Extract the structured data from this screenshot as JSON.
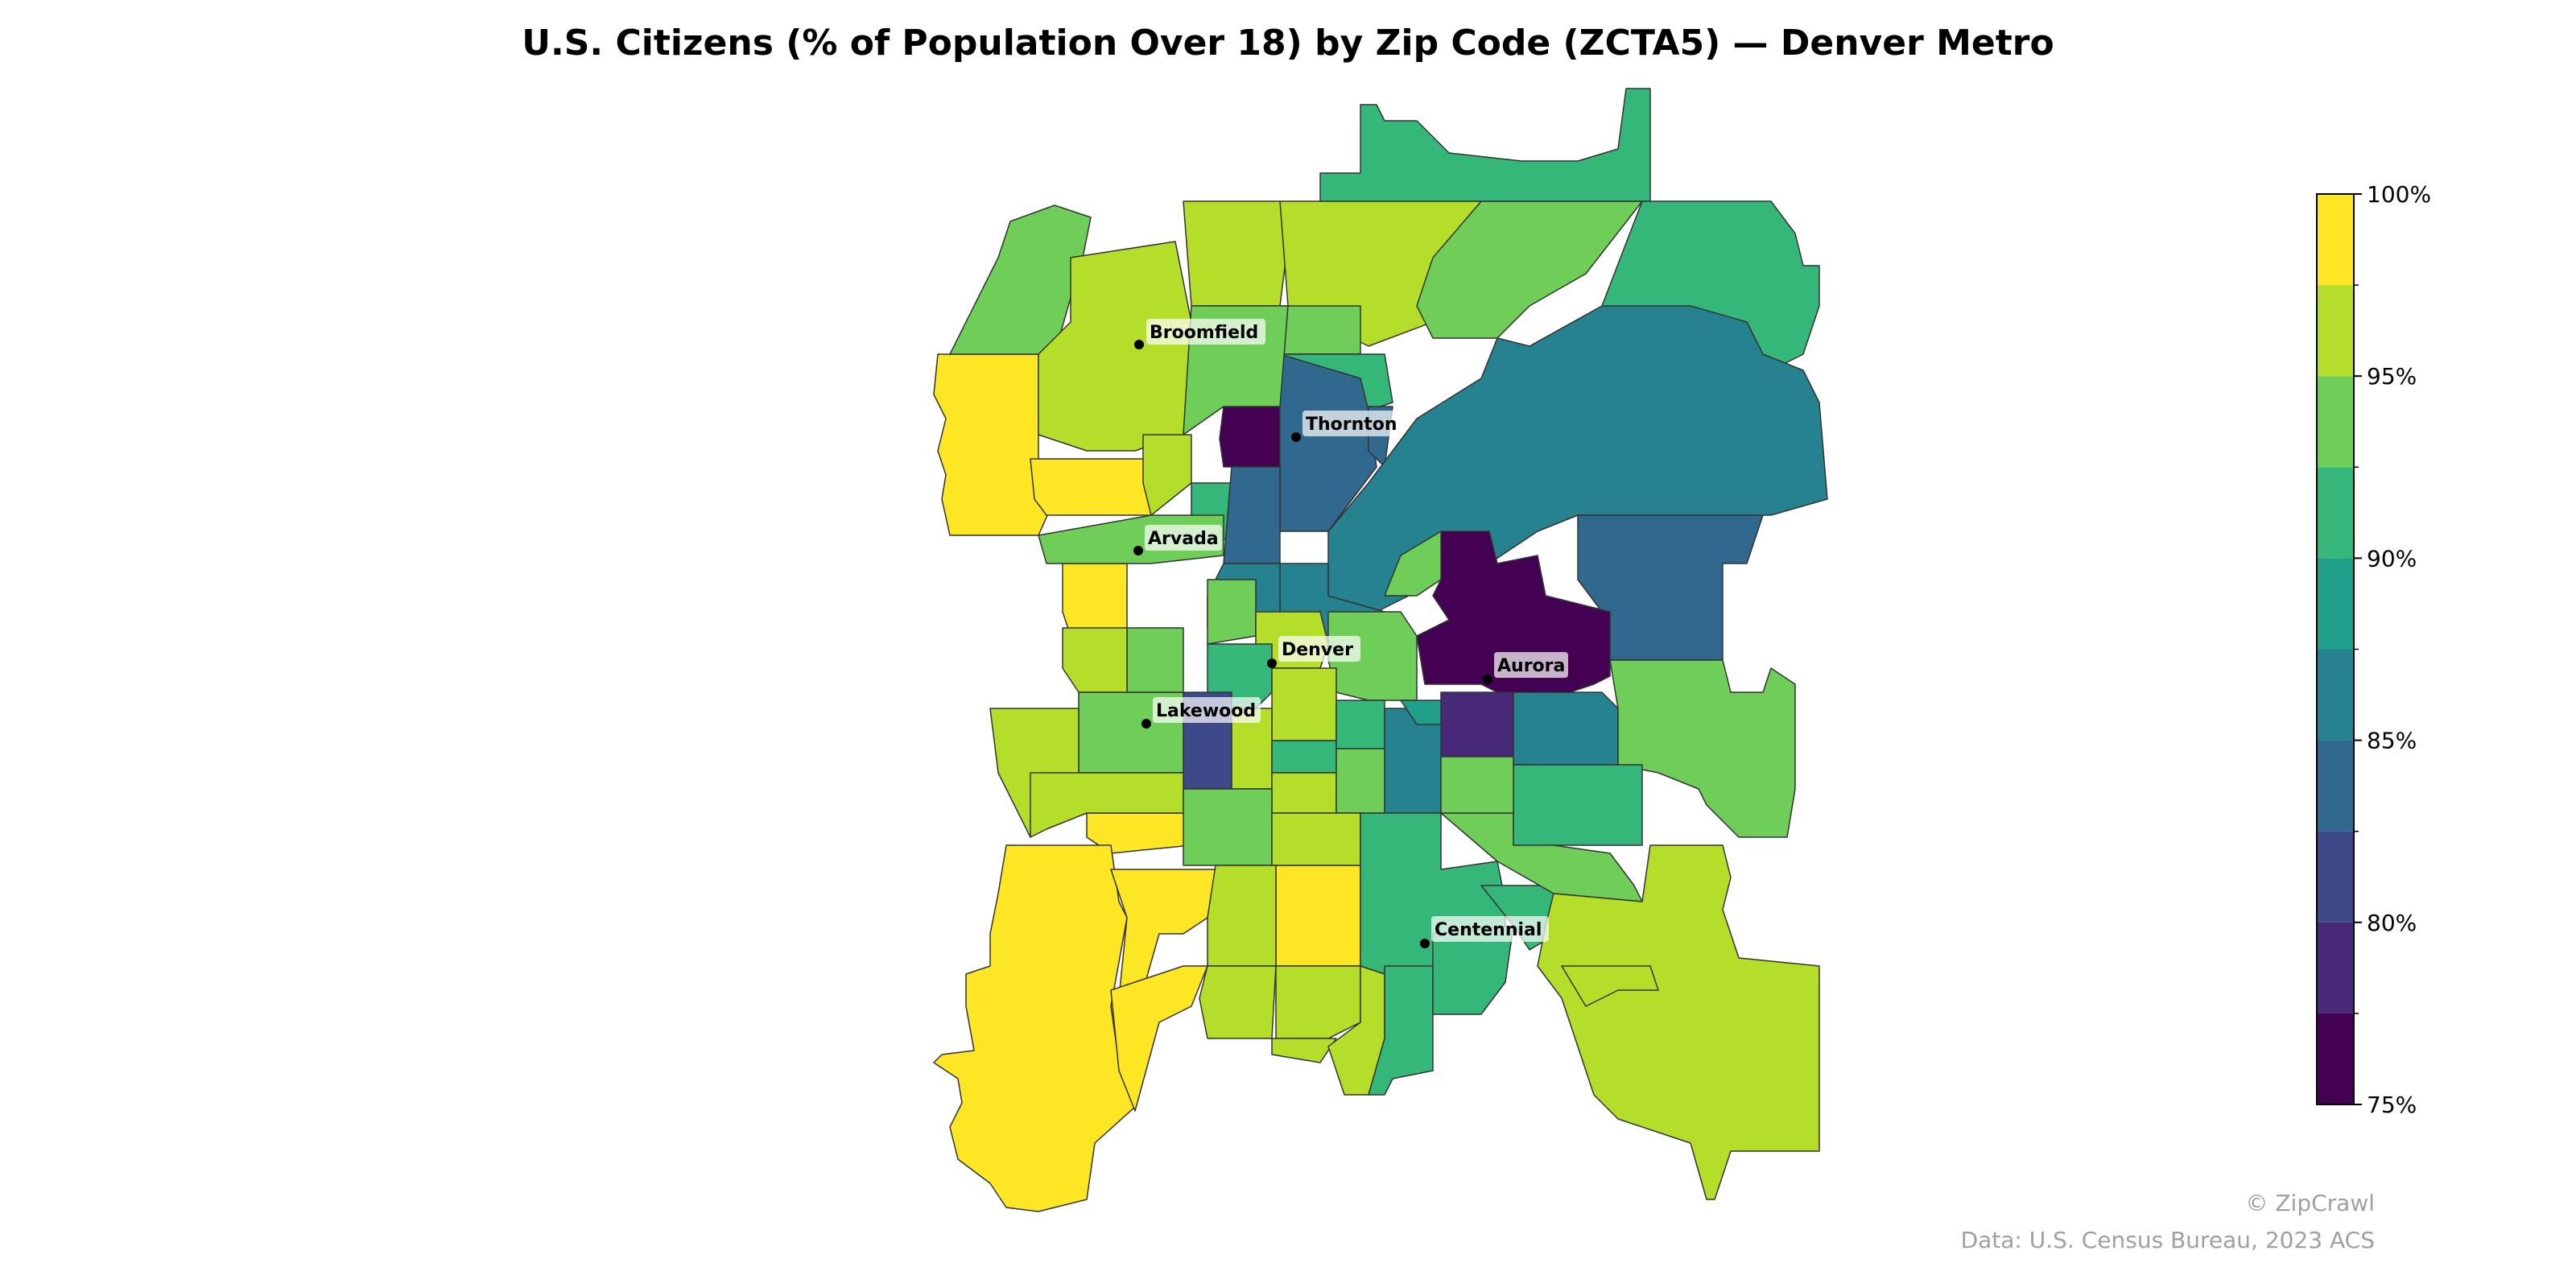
{
  "title": "U.S. Citizens (% of Population Over 18) by Zip Code (ZCTA5) — Denver Metro",
  "colorbar": {
    "min": 75,
    "max": 100,
    "step": 2.5,
    "tick_labels": [
      "100%",
      "95%",
      "90%",
      "85%",
      "80%",
      "75%"
    ],
    "tick_values": [
      100,
      95,
      90,
      85,
      80,
      75
    ],
    "colors": [
      "#440154",
      "#482878",
      "#3e4989",
      "#31688e",
      "#26828e",
      "#1f9e89",
      "#35b779",
      "#6ece58",
      "#b5de2b",
      "#fde725"
    ]
  },
  "cities": [
    {
      "name": "Broomfield"
    },
    {
      "name": "Thornton"
    },
    {
      "name": "Arvada"
    },
    {
      "name": "Denver"
    },
    {
      "name": "Aurora"
    },
    {
      "name": "Lakewood"
    },
    {
      "name": "Centennial"
    }
  ],
  "credits": {
    "line1": "© ZipCrawl",
    "line2": "Data: U.S. Census Bureau, 2023 ACS"
  },
  "colors": {
    "border": "#333333",
    "dot": "#000000",
    "label_bg": "#ffffff"
  }
}
